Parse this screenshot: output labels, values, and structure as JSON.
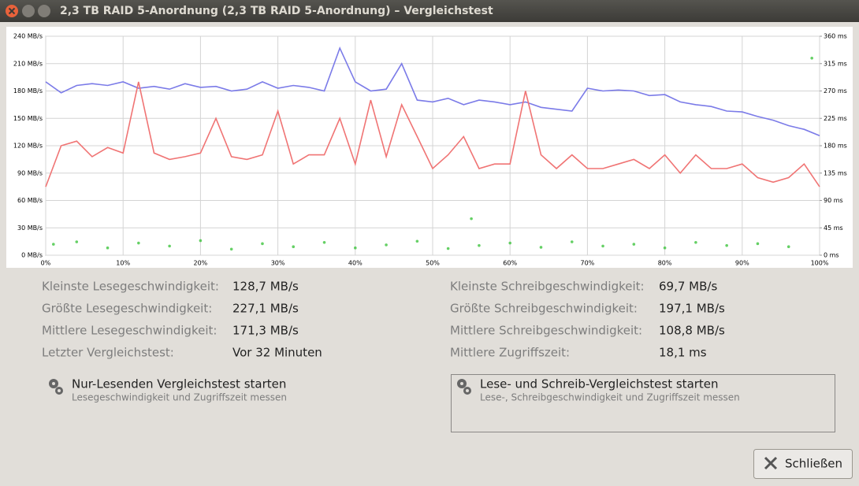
{
  "window": {
    "title": "2,3 TB RAID 5-Anordnung (2,3 TB RAID 5-Anordnung) – Vergleichstest"
  },
  "chart_data": {
    "type": "line",
    "x": [
      0,
      2,
      4,
      6,
      8,
      10,
      12,
      14,
      16,
      18,
      20,
      22,
      24,
      26,
      28,
      30,
      32,
      34,
      36,
      38,
      40,
      42,
      44,
      46,
      48,
      50,
      52,
      54,
      56,
      58,
      60,
      62,
      64,
      66,
      68,
      70,
      72,
      74,
      76,
      78,
      80,
      82,
      84,
      86,
      88,
      90,
      92,
      94,
      96,
      98,
      100
    ],
    "series": [
      {
        "name": "Lesegeschwindigkeit",
        "color": "#7b7be8",
        "values": [
          190,
          178,
          186,
          188,
          186,
          190,
          183,
          185,
          182,
          188,
          184,
          185,
          180,
          182,
          190,
          183,
          186,
          184,
          180,
          227,
          190,
          180,
          182,
          210,
          170,
          168,
          172,
          165,
          170,
          168,
          165,
          168,
          162,
          160,
          158,
          183,
          180,
          181,
          180,
          175,
          176,
          168,
          165,
          163,
          158,
          157,
          152,
          148,
          142,
          138,
          131
        ]
      },
      {
        "name": "Schreibgeschwindigkeit",
        "color": "#f07474",
        "values": [
          75,
          120,
          125,
          108,
          118,
          112,
          190,
          112,
          105,
          108,
          112,
          150,
          108,
          105,
          110,
          158,
          100,
          110,
          110,
          150,
          100,
          170,
          108,
          165,
          130,
          95,
          110,
          130,
          95,
          100,
          100,
          180,
          110,
          95,
          110,
          95,
          95,
          100,
          105,
          95,
          110,
          90,
          110,
          95,
          95,
          100,
          85,
          80,
          85,
          100,
          75
        ]
      },
      {
        "name": "Zugriffszeit",
        "color": "#3fc43f",
        "mode": "markers",
        "axis": "y2",
        "x": [
          1,
          4,
          8,
          12,
          16,
          20,
          24,
          28,
          32,
          36,
          40,
          44,
          48,
          52,
          55,
          56,
          60,
          64,
          68,
          72,
          76,
          80,
          84,
          88,
          92,
          96,
          99
        ],
        "values": [
          18,
          22,
          12,
          20,
          15,
          24,
          10,
          19,
          14,
          21,
          12,
          17,
          23,
          11,
          60,
          16,
          20,
          13,
          22,
          15,
          18,
          12,
          21,
          16,
          19,
          14,
          324
        ]
      }
    ],
    "xlim": [
      0,
      100
    ],
    "xticks": [
      {
        "value": 0,
        "label": "0%"
      },
      {
        "value": 10,
        "label": "10%"
      },
      {
        "value": 20,
        "label": "20%"
      },
      {
        "value": 30,
        "label": "30%"
      },
      {
        "value": 40,
        "label": "40%"
      },
      {
        "value": 50,
        "label": "50%"
      },
      {
        "value": 60,
        "label": "60%"
      },
      {
        "value": 70,
        "label": "70%"
      },
      {
        "value": 80,
        "label": "80%"
      },
      {
        "value": 90,
        "label": "90%"
      },
      {
        "value": 100,
        "label": "100%"
      }
    ],
    "ylim": [
      0,
      240
    ],
    "yticks": [
      {
        "value": 0,
        "label": "0 MB/s"
      },
      {
        "value": 30,
        "label": "30 MB/s"
      },
      {
        "value": 60,
        "label": "60 MB/s"
      },
      {
        "value": 90,
        "label": "90 MB/s"
      },
      {
        "value": 120,
        "label": "120 MB/s"
      },
      {
        "value": 150,
        "label": "150 MB/s"
      },
      {
        "value": 180,
        "label": "180 MB/s"
      },
      {
        "value": 210,
        "label": "210 MB/s"
      },
      {
        "value": 240,
        "label": "240 MB/s"
      }
    ],
    "y2lim": [
      0,
      360
    ],
    "y2ticks": [
      {
        "value": 0,
        "label": "0 ms"
      },
      {
        "value": 45,
        "label": "45 ms"
      },
      {
        "value": 90,
        "label": "90 ms"
      },
      {
        "value": 135,
        "label": "135 ms"
      },
      {
        "value": 180,
        "label": "180 ms"
      },
      {
        "value": 225,
        "label": "225 ms"
      },
      {
        "value": 270,
        "label": "270 ms"
      },
      {
        "value": 315,
        "label": "315 ms"
      },
      {
        "value": 360,
        "label": "360 ms"
      }
    ],
    "grid": true
  },
  "stats": {
    "left": [
      [
        "Kleinste Lesegeschwindigkeit:",
        "128,7 MB/s"
      ],
      [
        "Größte Lesegeschwindigkeit:",
        "227,1 MB/s"
      ],
      [
        "Mittlere Lesegeschwindigkeit:",
        "171,3 MB/s"
      ],
      [
        "Letzter Vergleichstest:",
        "Vor 32 Minuten"
      ]
    ],
    "right": [
      [
        "Kleinste Schreibgeschwindigkeit:",
        "69,7 MB/s"
      ],
      [
        "Größte Schreibgeschwindigkeit:",
        "197,1 MB/s"
      ],
      [
        "Mittlere Schreibgeschwindigkeit:",
        "108,8 MB/s"
      ],
      [
        "Mittlere Zugriffszeit:",
        "18,1 ms"
      ]
    ]
  },
  "buttons": [
    {
      "title": "Nur-Lesenden Vergleichstest starten",
      "subtitle": "Lesegeschwindigkeit und Zugriffszeit messen"
    },
    {
      "title": "Lese- und Schreib-Vergleichstest starten",
      "subtitle": "Lese-, Schreibgeschwindigkeit und Zugriffszeit messen"
    }
  ],
  "close": "Schließen"
}
